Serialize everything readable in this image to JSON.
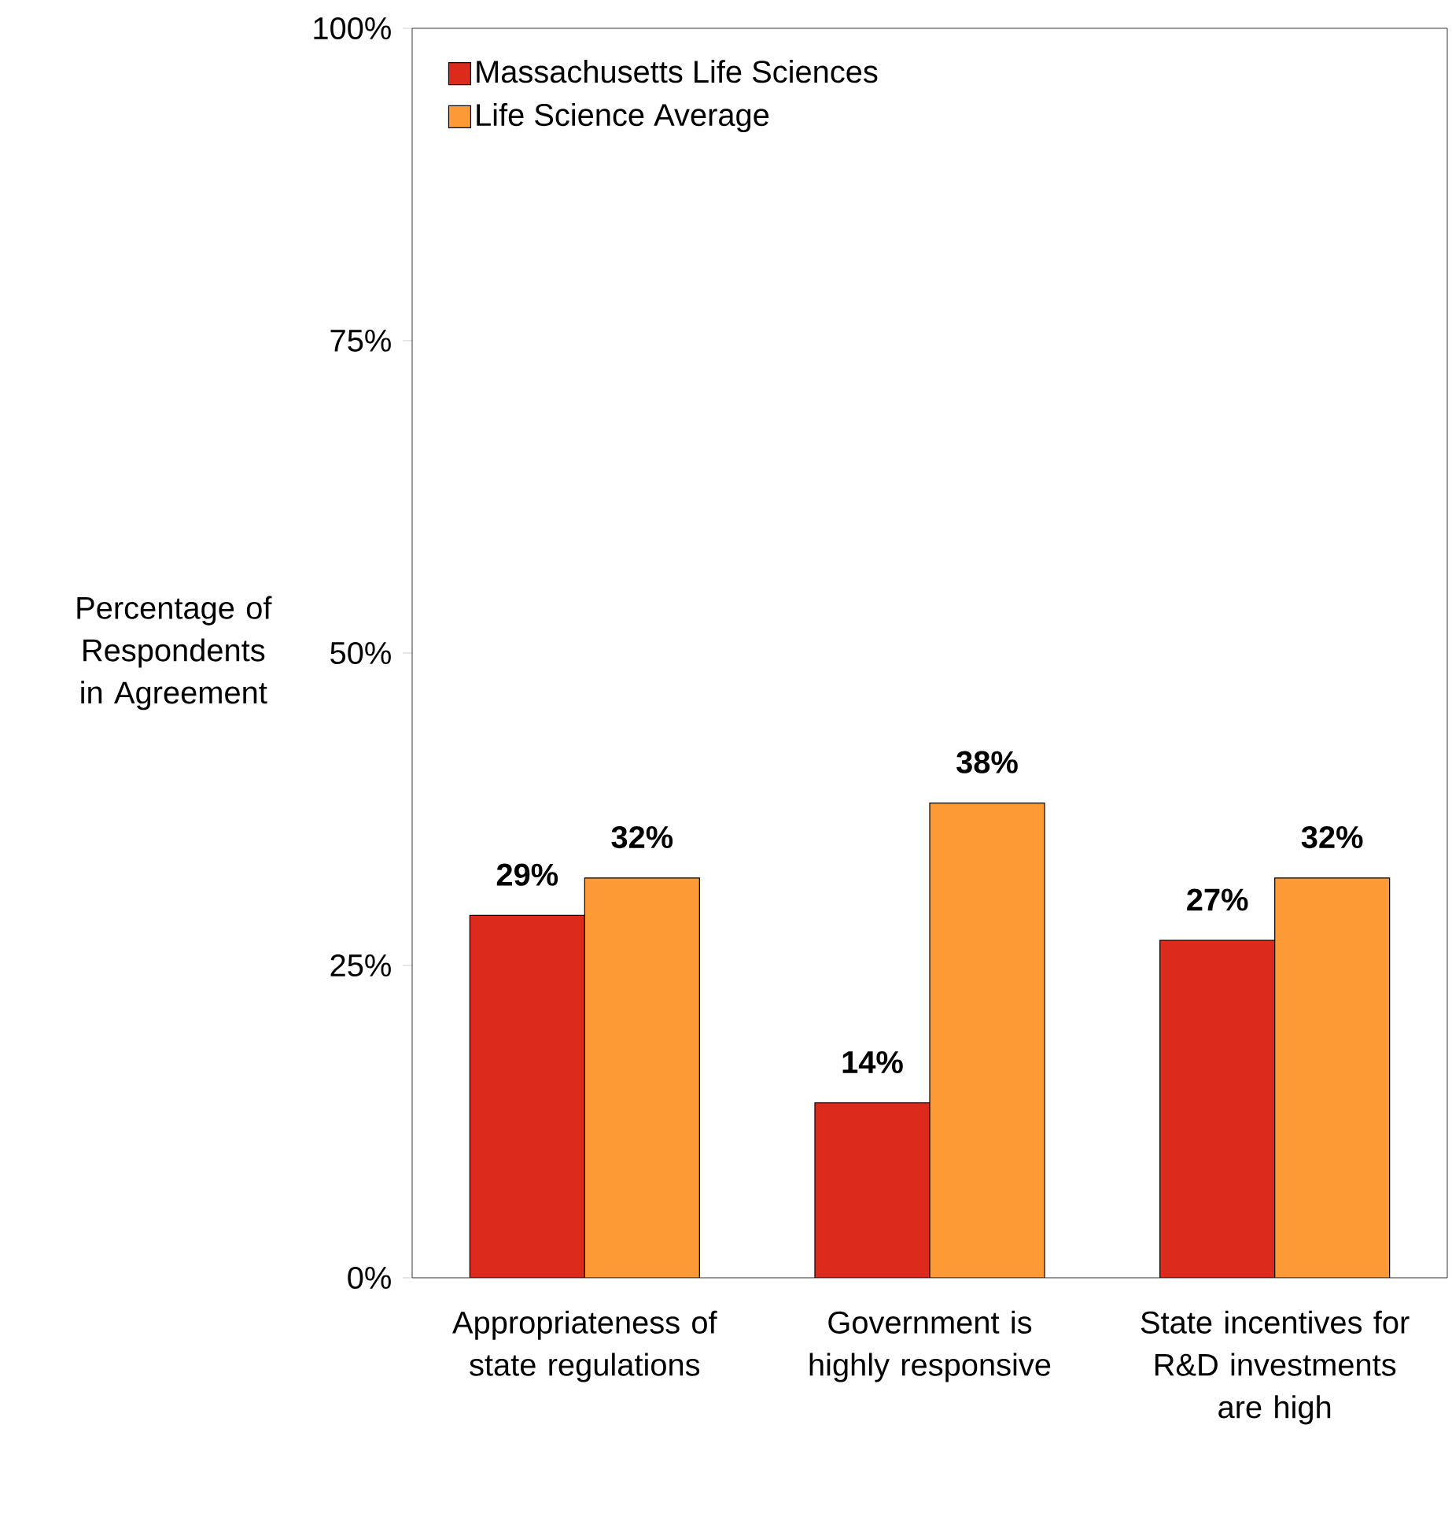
{
  "chart_data": {
    "type": "bar",
    "ylabel": "Percentage of Respondents in Agreement",
    "categories": [
      "Appropriateness of state regulations",
      "Government is highly responsive",
      "State incentives for R&D investments are high"
    ],
    "series": [
      {
        "name": "Massachusetts Life Sciences",
        "color": "#dc2b1c",
        "values": [
          29,
          14,
          27
        ],
        "value_labels": [
          "29%",
          "14%",
          "27%"
        ]
      },
      {
        "name": "Life Science Average",
        "color": "#fd9a35",
        "values": [
          32,
          38,
          32
        ],
        "value_labels": [
          "32%",
          "38%",
          "32%"
        ]
      }
    ],
    "ylim": [
      0,
      100
    ],
    "yticks": [
      {
        "value": 0,
        "label": "0%"
      },
      {
        "value": 25,
        "label": "25%"
      },
      {
        "value": 50,
        "label": "50%"
      },
      {
        "value": 75,
        "label": "75%"
      },
      {
        "value": 100,
        "label": "100%"
      }
    ],
    "legend": "top left",
    "grid": false
  }
}
